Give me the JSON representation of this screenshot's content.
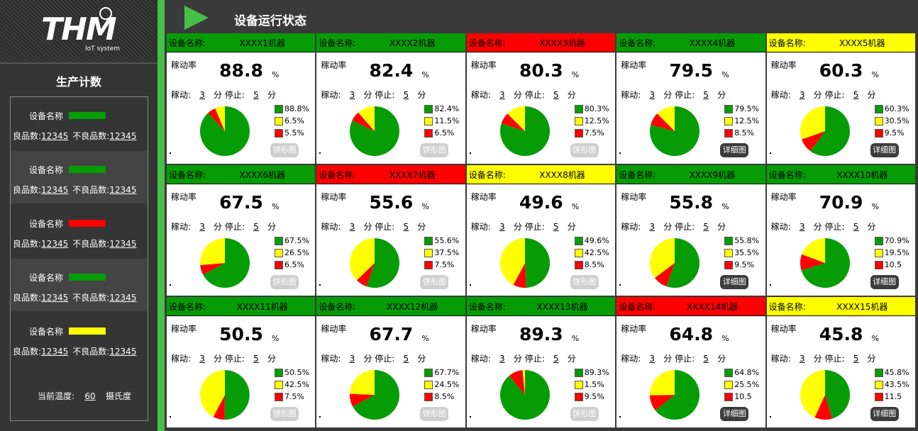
{
  "colors": {
    "green": "#069c06",
    "yellow": "#ffff00",
    "red": "#ff0000"
  },
  "brand": {
    "logo": "THM",
    "subtitle": "IoT system"
  },
  "sidebar": {
    "title": "生产计数",
    "items": [
      {
        "name_label": "设备名称",
        "status_color": "#069c06",
        "good_label": "良品数:",
        "good": "12345",
        "bad_label": "不良品数:",
        "bad": "12345"
      },
      {
        "name_label": "设备名称",
        "status_color": "#069c06",
        "good_label": "良品数:",
        "good": "12345",
        "bad_label": "不良品数:",
        "bad": "12345"
      },
      {
        "name_label": "设备名称",
        "status_color": "#ff0000",
        "good_label": "良品数:",
        "good": "12345",
        "bad_label": "不良品数:",
        "bad": "12345"
      },
      {
        "name_label": "设备名称",
        "status_color": "#069c06",
        "good_label": "良品数:",
        "good": "12345",
        "bad_label": "不良品数:",
        "bad": "12345"
      },
      {
        "name_label": "设备名称",
        "status_color": "#ffff00",
        "good_label": "良品数:",
        "good": "12345",
        "bad_label": "不良品数:",
        "bad": "12345"
      }
    ],
    "temp_label": "当前温度:",
    "temp_value": "60",
    "temp_unit": "摄氏度"
  },
  "header": {
    "title": "设备运行状态"
  },
  "labels": {
    "device_name": "设备名称:",
    "rate": "稼动率",
    "percent": "%",
    "run": "稼动:",
    "stop": "停止:",
    "minute": "分"
  },
  "machines": [
    {
      "name": "XXXX1机器",
      "status": "green",
      "rate": "88.8",
      "run": "3",
      "stop": "5",
      "slices": [
        88.8,
        6.5,
        5.5
      ],
      "legend": [
        "88.8%",
        "6.5%",
        "5.5%"
      ],
      "button": "饼形图",
      "button_style": "light"
    },
    {
      "name": "XXXX2机器",
      "status": "green",
      "rate": "82.4",
      "run": "3",
      "stop": "5",
      "slices": [
        82.4,
        11.5,
        6.5
      ],
      "legend": [
        "82.4%",
        "11.5%",
        "6.5%"
      ],
      "button": "饼形图",
      "button_style": "light"
    },
    {
      "name": "XXXX3机器",
      "status": "red",
      "rate": "80.3",
      "run": "3",
      "stop": "5",
      "slices": [
        80.3,
        12.5,
        7.5
      ],
      "legend": [
        "80.3%",
        "12.5%",
        "7.5%"
      ],
      "button": "饼形图",
      "button_style": "light"
    },
    {
      "name": "XXXX4机器",
      "status": "green",
      "rate": "79.5",
      "run": "3",
      "stop": "5",
      "slices": [
        79.5,
        12.5,
        8.5
      ],
      "legend": [
        "79.5%",
        "12.5%",
        "8.5%"
      ],
      "button": "详细图",
      "button_style": "dark"
    },
    {
      "name": "XXXX5机器",
      "status": "yellow",
      "rate": "60.3",
      "run": "3",
      "stop": "5",
      "slices": [
        60.3,
        30.5,
        9.5
      ],
      "legend": [
        "60.3%",
        "30.5%",
        "9.5%"
      ],
      "button": "详细图",
      "button_style": "dark"
    },
    {
      "name": "XXXX6机器",
      "status": "green",
      "rate": "67.5",
      "run": "3",
      "stop": "5",
      "slices": [
        67.5,
        26.5,
        6.5
      ],
      "legend": [
        "67.5%",
        "26.5%",
        "6.5%"
      ],
      "button": "饼形图",
      "button_style": "light"
    },
    {
      "name": "XXXX7机器",
      "status": "red",
      "rate": "55.6",
      "run": "3",
      "stop": "5",
      "slices": [
        55.6,
        37.5,
        7.5
      ],
      "legend": [
        "55.6%",
        "37.5%",
        "7.5%"
      ],
      "button": "饼形图",
      "button_style": "light"
    },
    {
      "name": "XXXX8机器",
      "status": "yellow",
      "rate": "49.6",
      "run": "3",
      "stop": "5",
      "slices": [
        49.6,
        42.5,
        8.5
      ],
      "legend": [
        "49.6%",
        "42.5%",
        "8.5%"
      ],
      "button": "饼形图",
      "button_style": "light"
    },
    {
      "name": "XXXX9机器",
      "status": "green",
      "rate": "55.8",
      "run": "3",
      "stop": "5",
      "slices": [
        55.8,
        35.5,
        9.5
      ],
      "legend": [
        "55.8%",
        "35.5%",
        "9.5%"
      ],
      "button": "详细图",
      "button_style": "dark"
    },
    {
      "name": "XXXX10机器",
      "status": "green",
      "rate": "70.9",
      "run": "3",
      "stop": "5",
      "slices": [
        70.9,
        19.5,
        10.5
      ],
      "legend": [
        "70.9%",
        "19.5%",
        "10.5"
      ],
      "button": "详细图",
      "button_style": "dark"
    },
    {
      "name": "XXXX11机器",
      "status": "green",
      "rate": "50.5",
      "run": "3",
      "stop": "5",
      "slices": [
        50.5,
        42.5,
        7.5
      ],
      "legend": [
        "50.5%",
        "42.5%",
        "7.5%"
      ],
      "button": "饼形图",
      "button_style": "light"
    },
    {
      "name": "XXXX12机器",
      "status": "green",
      "rate": "67.7",
      "run": "3",
      "stop": "5",
      "slices": [
        67.7,
        24.5,
        8.5
      ],
      "legend": [
        "67.7%",
        "24.5%",
        "8.5%"
      ],
      "button": "饼形图",
      "button_style": "light"
    },
    {
      "name": "XXXX13机器",
      "status": "green",
      "rate": "89.3",
      "run": "3",
      "stop": "5",
      "slices": [
        89.3,
        1.5,
        9.5
      ],
      "legend": [
        "89.3%",
        "1.5%",
        "9.5%"
      ],
      "button": "饼形图",
      "button_style": "light"
    },
    {
      "name": "XXXX14机器",
      "status": "red",
      "rate": "64.8",
      "run": "3",
      "stop": "5",
      "slices": [
        64.8,
        25.5,
        10.5
      ],
      "legend": [
        "64.8%",
        "25.5%",
        "10.5"
      ],
      "button": "详细图",
      "button_style": "dark"
    },
    {
      "name": "XXXX15机器",
      "status": "yellow",
      "rate": "45.8",
      "run": "3",
      "stop": "5",
      "slices": [
        45.8,
        43.5,
        11.5
      ],
      "legend": [
        "45.8%",
        "43.5%",
        "11.5"
      ],
      "button": "详细图",
      "button_style": "dark"
    }
  ]
}
